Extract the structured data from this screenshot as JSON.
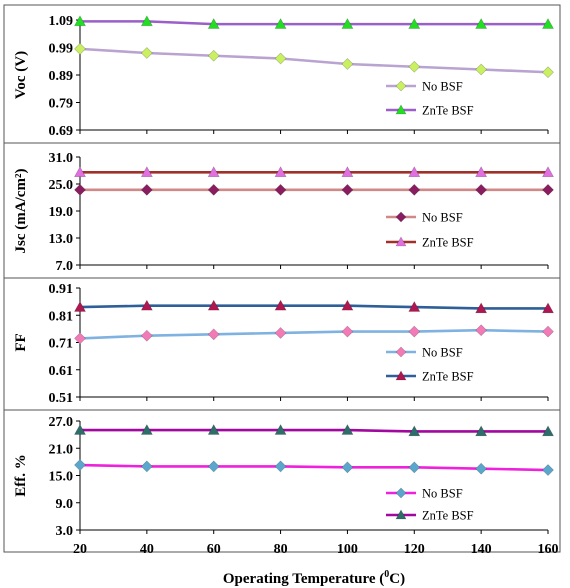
{
  "x_axis": {
    "title_prefix": "Operating  Temperature (",
    "title_sup": "0",
    "title_suffix": "C)"
  },
  "chart_data": [
    {
      "type": "line",
      "ylabel": "Voc (V)",
      "ylim": [
        0.69,
        1.09
      ],
      "yticks": [
        "1.09",
        "0.99",
        "0.89",
        "0.79",
        "0.69"
      ],
      "x": [
        20,
        40,
        60,
        80,
        100,
        120,
        140,
        160
      ],
      "xlim": [
        20,
        160
      ],
      "legend_position": "bottom-right",
      "series": [
        {
          "name": "No BSF",
          "values": [
            0.985,
            0.97,
            0.96,
            0.95,
            0.93,
            0.92,
            0.91,
            0.9
          ],
          "line_color": "#b9a3d1",
          "marker": "diamond",
          "marker_color": "#c8f060"
        },
        {
          "name": "ZnTe BSF",
          "values": [
            1.085,
            1.085,
            1.075,
            1.075,
            1.075,
            1.075,
            1.075,
            1.075
          ],
          "line_color": "#9a5fc8",
          "marker": "triangle",
          "marker_color": "#22dd22"
        }
      ]
    },
    {
      "type": "line",
      "ylabel": "Jsc (mA/cm²)",
      "ylim": [
        7.0,
        31.0
      ],
      "yticks": [
        "31.0",
        "25.0",
        "19.0",
        "13.0",
        "7.0"
      ],
      "x": [
        20,
        40,
        60,
        80,
        100,
        120,
        140,
        160
      ],
      "xlim": [
        20,
        160
      ],
      "legend_position": "bottom-right",
      "series": [
        {
          "name": "No BSF",
          "values": [
            23.7,
            23.7,
            23.7,
            23.7,
            23.7,
            23.7,
            23.7,
            23.7
          ],
          "line_color": "#d08888",
          "marker": "diamond",
          "marker_color": "#8a1d60"
        },
        {
          "name": "ZnTe BSF",
          "values": [
            27.6,
            27.6,
            27.6,
            27.6,
            27.6,
            27.6,
            27.6,
            27.6
          ],
          "line_color": "#a0302a",
          "marker": "triangle",
          "marker_color": "#e070e0"
        }
      ]
    },
    {
      "type": "line",
      "ylabel": "FF",
      "ylim": [
        0.51,
        0.91
      ],
      "yticks": [
        "0.91",
        "0.81",
        "0.71",
        "0.61",
        "0.51"
      ],
      "x": [
        20,
        40,
        60,
        80,
        100,
        120,
        140,
        160
      ],
      "xlim": [
        20,
        160
      ],
      "legend_position": "bottom-right",
      "series": [
        {
          "name": "No BSF",
          "values": [
            0.725,
            0.735,
            0.74,
            0.745,
            0.75,
            0.75,
            0.755,
            0.75
          ],
          "line_color": "#7fb2e0",
          "marker": "diamond",
          "marker_color": "#f27ab7"
        },
        {
          "name": "ZnTe BSF",
          "values": [
            0.84,
            0.845,
            0.845,
            0.845,
            0.845,
            0.84,
            0.835,
            0.835
          ],
          "line_color": "#2f5f98",
          "marker": "triangle",
          "marker_color": "#b0164f"
        }
      ]
    },
    {
      "type": "line",
      "ylabel": "Eff. %",
      "ylim": [
        3.0,
        27.0
      ],
      "yticks": [
        "27.0",
        "21.0",
        "15.0",
        "9.0",
        "3.0"
      ],
      "x": [
        20,
        40,
        60,
        80,
        100,
        120,
        140,
        160
      ],
      "xlim": [
        20,
        160
      ],
      "xticks": [
        "20",
        "40",
        "60",
        "80",
        "100",
        "120",
        "140",
        "160"
      ],
      "legend_position": "bottom-right",
      "series": [
        {
          "name": "No BSF",
          "values": [
            17.3,
            17.0,
            17.0,
            17.0,
            16.8,
            16.8,
            16.5,
            16.2
          ],
          "line_color": "#ee22dd",
          "marker": "diamond",
          "marker_color": "#5aa6cc"
        },
        {
          "name": "ZnTe BSF",
          "values": [
            25.0,
            25.0,
            25.0,
            25.0,
            25.0,
            24.7,
            24.7,
            24.7
          ],
          "line_color": "#a0089f",
          "marker": "triangle",
          "marker_color": "#2e6e6a"
        }
      ]
    }
  ]
}
